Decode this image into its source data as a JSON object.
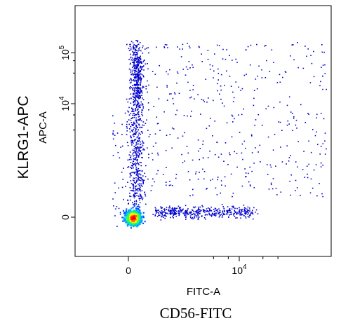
{
  "chart_data": {
    "type": "scatter",
    "subtype": "flow-cytometry density dot plot",
    "outer_xlabel": "CD56-FITC",
    "outer_ylabel": "KLRG1-APC",
    "xlabel": "FITC-A",
    "ylabel": "APC-A",
    "x_ticks": [
      {
        "value": 0,
        "base": "0",
        "exp": ""
      },
      {
        "value": 10000,
        "base": "10",
        "exp": "4"
      }
    ],
    "y_ticks": [
      {
        "value": 0,
        "base": "0",
        "exp": ""
      },
      {
        "value": 10000,
        "base": "10",
        "exp": "4"
      },
      {
        "value": 100000,
        "base": "10",
        "exp": "5"
      }
    ],
    "scale": "biexponential",
    "grid": false,
    "legend": "none",
    "density_colors": [
      "#0000cc",
      "#0050ff",
      "#00a0ff",
      "#00e0c0",
      "#40ff40",
      "#ffee00",
      "#ff6600",
      "#ff0000"
    ],
    "populations": [
      {
        "name": "",
        "x_center": 600,
        "y_center": 0,
        "description": "dense double-negative cluster near origin (hot spot)"
      },
      {
        "name": "",
        "x_center": 1100,
        "y_center": 30000,
        "description": "vertical KLRG1+ CD56-dim/neg streak"
      },
      {
        "name": "",
        "x_center": 8000,
        "y_center": 150,
        "description": "CD56+ KLRG1-neg horizontal band"
      },
      {
        "name": "",
        "x_center": 9000,
        "y_center": 15000,
        "description": "sparse CD56+ KLRG1+ scatter"
      }
    ]
  }
}
